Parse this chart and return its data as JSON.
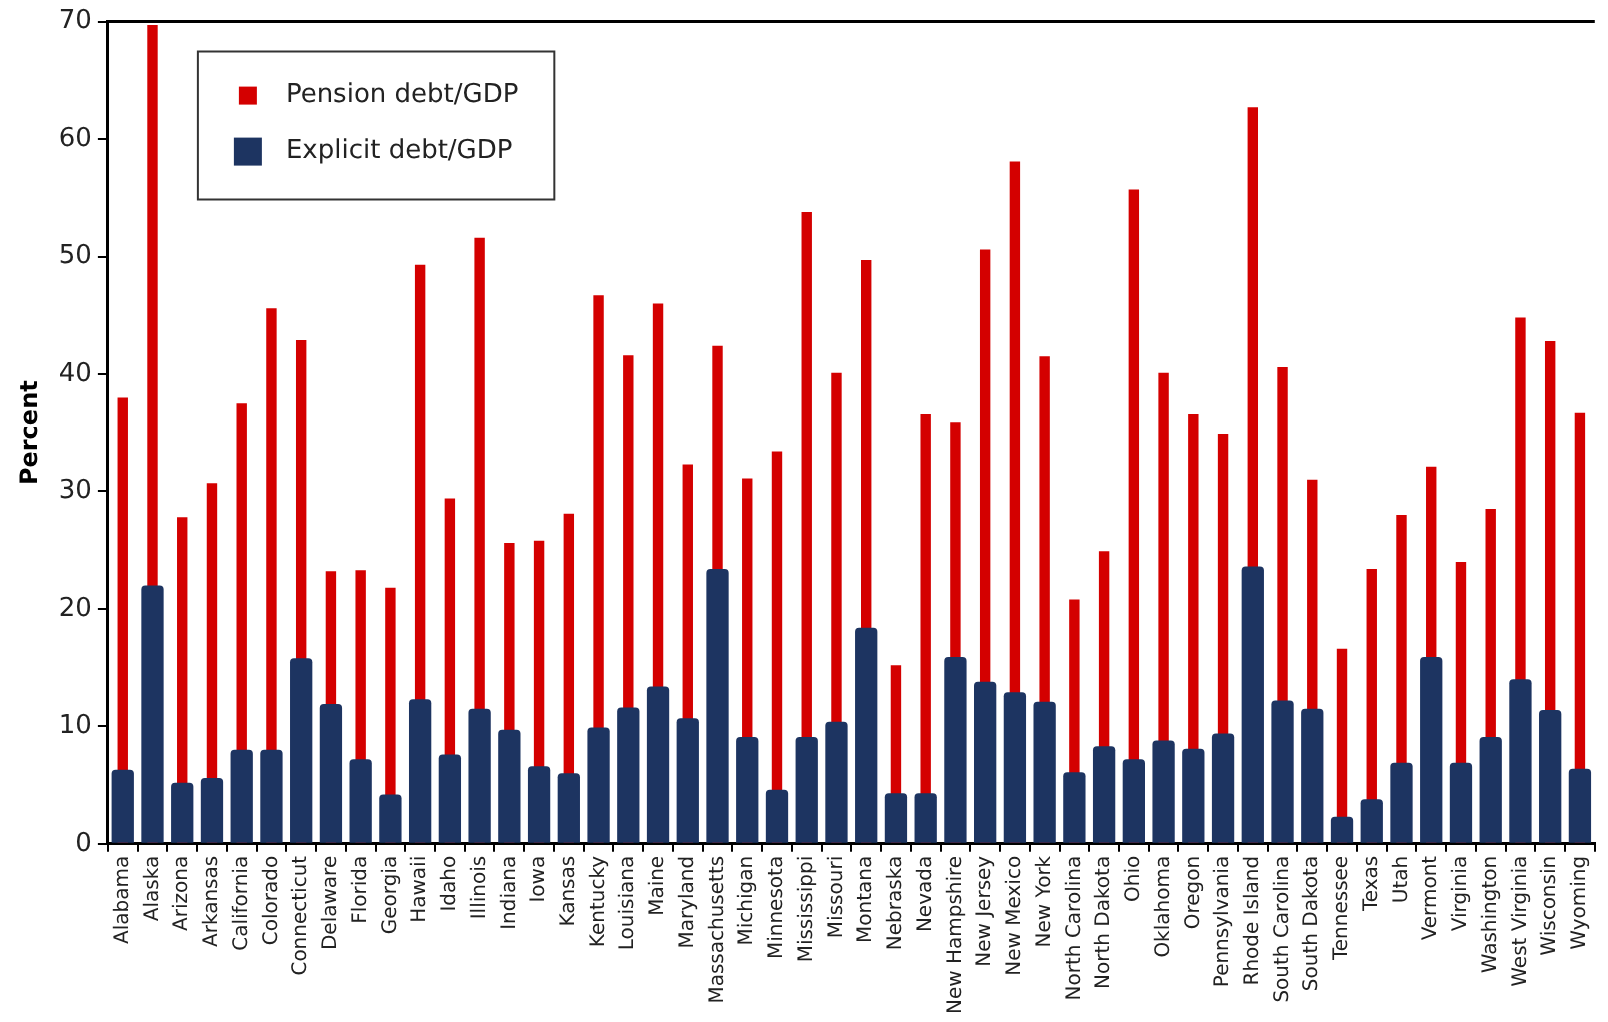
{
  "chart_data": {
    "type": "bar",
    "ylabel": "Percent",
    "categories": [
      "Alabama",
      "Alaska",
      "Arizona",
      "Arkansas",
      "California",
      "Colorado",
      "Connecticut",
      "Delaware",
      "Florida",
      "Georgia",
      "Hawaii",
      "Idaho",
      "Illinois",
      "Indiana",
      "Iowa",
      "Kansas",
      "Kentucky",
      "Louisiana",
      "Maine",
      "Maryland",
      "Massachusetts",
      "Michigan",
      "Minnesota",
      "Mississippi",
      "Missouri",
      "Montana",
      "Nebraska",
      "Nevada",
      "New Hampshire",
      "New Jersey",
      "New Mexico",
      "New York",
      "North Carolina",
      "North Dakota",
      "Ohio",
      "Oklahoma",
      "Oregon",
      "Pennsylvania",
      "Rhode Island",
      "South Carolina",
      "South Dakota",
      "Tennessee",
      "Texas",
      "Utah",
      "Vermont",
      "Virginia",
      "Washington",
      "West Virginia",
      "Wisconsin",
      "Wyoming"
    ],
    "series": [
      {
        "name": "Pension debt/GDP",
        "color": "#d40000",
        "values": [
          38,
          69.7,
          27.8,
          30.7,
          37.5,
          45.6,
          42.9,
          23.2,
          23.3,
          21.8,
          49.3,
          29.4,
          51.6,
          25.6,
          25.8,
          28.1,
          46.7,
          41.6,
          46,
          32.3,
          42.4,
          31.1,
          33.4,
          53.8,
          40.1,
          49.7,
          15.2,
          36.6,
          35.9,
          50.6,
          58.1,
          41.5,
          20.8,
          24.9,
          55.7,
          40.1,
          36.6,
          34.9,
          62.7,
          40.6,
          31,
          16.6,
          23.4,
          28,
          32.1,
          24,
          28.5,
          44.8,
          42.8,
          36.7
        ]
      },
      {
        "name": "Explicit debt/GDP",
        "color": "#1d3461",
        "values": [
          6.3,
          22,
          5.2,
          5.6,
          8,
          8,
          15.8,
          11.9,
          7.2,
          4.2,
          12.3,
          7.6,
          11.5,
          9.7,
          6.6,
          6,
          9.9,
          11.6,
          13.4,
          10.7,
          23.4,
          9.1,
          4.6,
          9.1,
          10.4,
          18.4,
          4.3,
          4.3,
          15.9,
          13.8,
          12.9,
          12.1,
          6.1,
          8.3,
          7.2,
          8.8,
          8.1,
          9.4,
          23.6,
          12.2,
          11.5,
          2.3,
          3.8,
          6.9,
          15.9,
          6.9,
          9.1,
          14,
          11.4,
          6.4
        ]
      }
    ],
    "ylim": [
      0,
      70
    ],
    "yticks": [
      0,
      10,
      20,
      30,
      40,
      50,
      60,
      70
    ],
    "grid": false,
    "legend": "top left"
  }
}
